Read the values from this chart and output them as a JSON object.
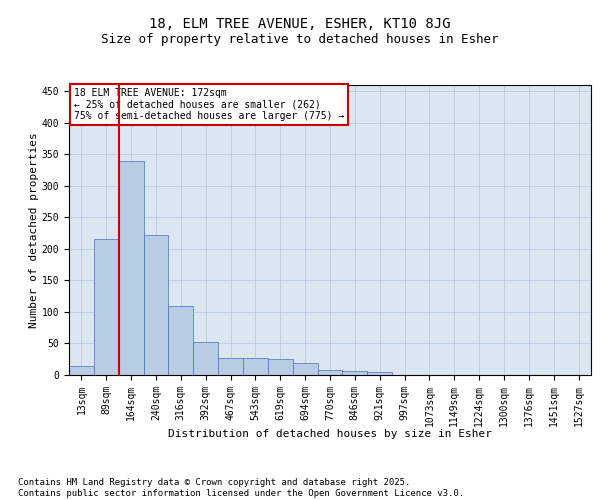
{
  "title1": "18, ELM TREE AVENUE, ESHER, KT10 8JG",
  "title2": "Size of property relative to detached houses in Esher",
  "xlabel": "Distribution of detached houses by size in Esher",
  "ylabel": "Number of detached properties",
  "bar_labels": [
    "13sqm",
    "89sqm",
    "164sqm",
    "240sqm",
    "316sqm",
    "392sqm",
    "467sqm",
    "543sqm",
    "619sqm",
    "694sqm",
    "770sqm",
    "846sqm",
    "921sqm",
    "997sqm",
    "1073sqm",
    "1149sqm",
    "1224sqm",
    "1300sqm",
    "1376sqm",
    "1451sqm",
    "1527sqm"
  ],
  "bar_values": [
    15,
    215,
    340,
    222,
    110,
    53,
    27,
    27,
    26,
    19,
    8,
    6,
    4,
    0,
    0,
    0,
    0,
    0,
    0,
    0,
    0
  ],
  "bar_color": "#b8cce4",
  "bar_edge_color": "#4472c4",
  "grid_color": "#b8cce4",
  "background_color": "#dce6f1",
  "vline_color": "#cc0000",
  "annotation_text": "18 ELM TREE AVENUE: 172sqm\n← 25% of detached houses are smaller (262)\n75% of semi-detached houses are larger (775) →",
  "annotation_box_color": "#cc0000",
  "ylim": [
    0,
    460
  ],
  "yticks": [
    0,
    50,
    100,
    150,
    200,
    250,
    300,
    350,
    400,
    450
  ],
  "footer": "Contains HM Land Registry data © Crown copyright and database right 2025.\nContains public sector information licensed under the Open Government Licence v3.0.",
  "title_fontsize": 10,
  "subtitle_fontsize": 9,
  "axis_label_fontsize": 8,
  "tick_fontsize": 7,
  "footer_fontsize": 6.5,
  "annotation_fontsize": 7
}
